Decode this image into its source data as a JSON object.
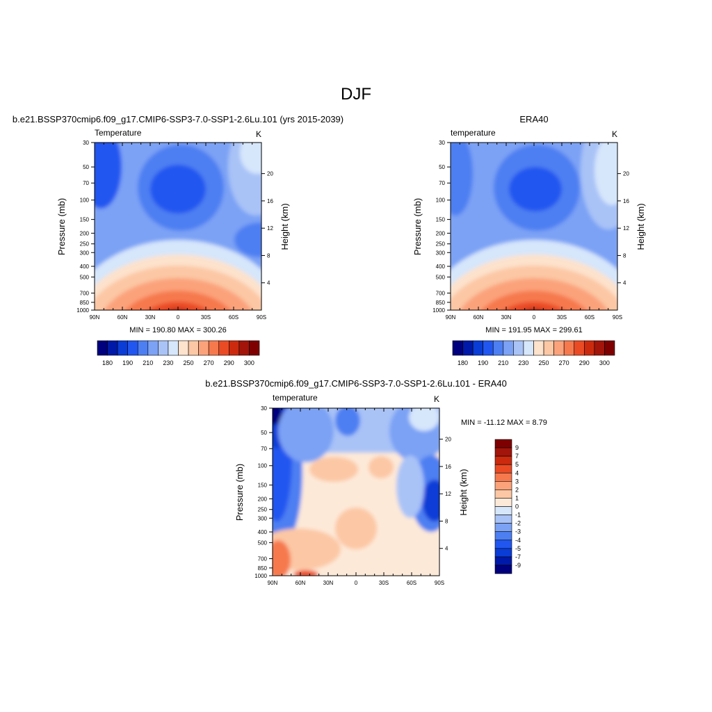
{
  "figure_title": "DJF",
  "colors": {
    "main_scale": [
      "#00007f",
      "#0019a8",
      "#0a3cd6",
      "#2157f0",
      "#4d7ff2",
      "#7ba2f5",
      "#a9c3f7",
      "#d6e6fb",
      "#fde2cc",
      "#fcc7a4",
      "#fba27a",
      "#f6794e",
      "#ea4b25",
      "#cc2a0e",
      "#a3150a",
      "#7f0000"
    ],
    "diff_scale": [
      "#00007f",
      "#0019a8",
      "#0a3cd6",
      "#2157f0",
      "#4d7ff2",
      "#7ba2f5",
      "#a9c3f7",
      "#d6e6fb",
      "#fde9d8",
      "#fcc7a4",
      "#fba27a",
      "#f6794e",
      "#ea4b25",
      "#cc2a0e",
      "#a3150a",
      "#7f0000"
    ]
  },
  "chart_data": [
    {
      "type": "heatmap",
      "title": "b.e21.BSSP370cmip6.f09_g17.CMIP6-SSP3-7.0-SSP1-2.6Lu.101 (yrs 2015-2039)",
      "left_label": "Temperature",
      "right_label": "K",
      "ylabel": "Pressure (mb)",
      "ylabel_right": "Height (km)",
      "x_ticks": [
        "90N",
        "60N",
        "30N",
        "0",
        "30S",
        "60S",
        "90S"
      ],
      "y_ticks": [
        "30",
        "50",
        "70",
        "100",
        "150",
        "200",
        "250",
        "300",
        "400",
        "500",
        "700",
        "850",
        "1000"
      ],
      "y_right_ticks": [
        "20",
        "16",
        "12",
        "8",
        "4"
      ],
      "stats": "MIN = 190.80  MAX = 300.26",
      "colorbar_labels": [
        "180",
        "190",
        "210",
        "230",
        "250",
        "270",
        "290",
        "300"
      ],
      "min": 190.8,
      "max": 300.26
    },
    {
      "type": "heatmap",
      "title": "ERA40",
      "left_label": "temperature",
      "right_label": "K",
      "ylabel": "Pressure (mb)",
      "ylabel_right": "Height (km)",
      "x_ticks": [
        "90N",
        "60N",
        "30N",
        "0",
        "30S",
        "60S",
        "90S"
      ],
      "y_ticks": [
        "30",
        "50",
        "70",
        "100",
        "150",
        "200",
        "250",
        "300",
        "400",
        "500",
        "700",
        "850",
        "1000"
      ],
      "y_right_ticks": [
        "20",
        "16",
        "12",
        "8",
        "4"
      ],
      "stats": "MIN = 191.95  MAX = 299.61",
      "colorbar_labels": [
        "180",
        "190",
        "210",
        "230",
        "250",
        "270",
        "290",
        "300"
      ],
      "min": 191.95,
      "max": 299.61
    },
    {
      "type": "heatmap",
      "title": "b.e21.BSSP370cmip6.f09_g17.CMIP6-SSP3-7.0-SSP1-2.6Lu.101 - ERA40",
      "left_label": "temperature",
      "right_label": "K",
      "ylabel": "Pressure (mb)",
      "ylabel_right": "Height (km)",
      "x_ticks": [
        "90N",
        "60N",
        "30N",
        "0",
        "30S",
        "60S",
        "90S"
      ],
      "y_ticks": [
        "30",
        "50",
        "70",
        "100",
        "150",
        "200",
        "250",
        "300",
        "400",
        "500",
        "700",
        "850",
        "1000"
      ],
      "y_right_ticks": [
        "20",
        "16",
        "12",
        "8",
        "4"
      ],
      "stats": "MIN = -11.12  MAX =   8.79",
      "colorbar_labels": [
        "9",
        "7",
        "5",
        "4",
        "3",
        "2",
        "1",
        "0",
        "-1",
        "-2",
        "-3",
        "-4",
        "-5",
        "-7",
        "-9"
      ],
      "min": -11.12,
      "max": 8.79
    }
  ]
}
